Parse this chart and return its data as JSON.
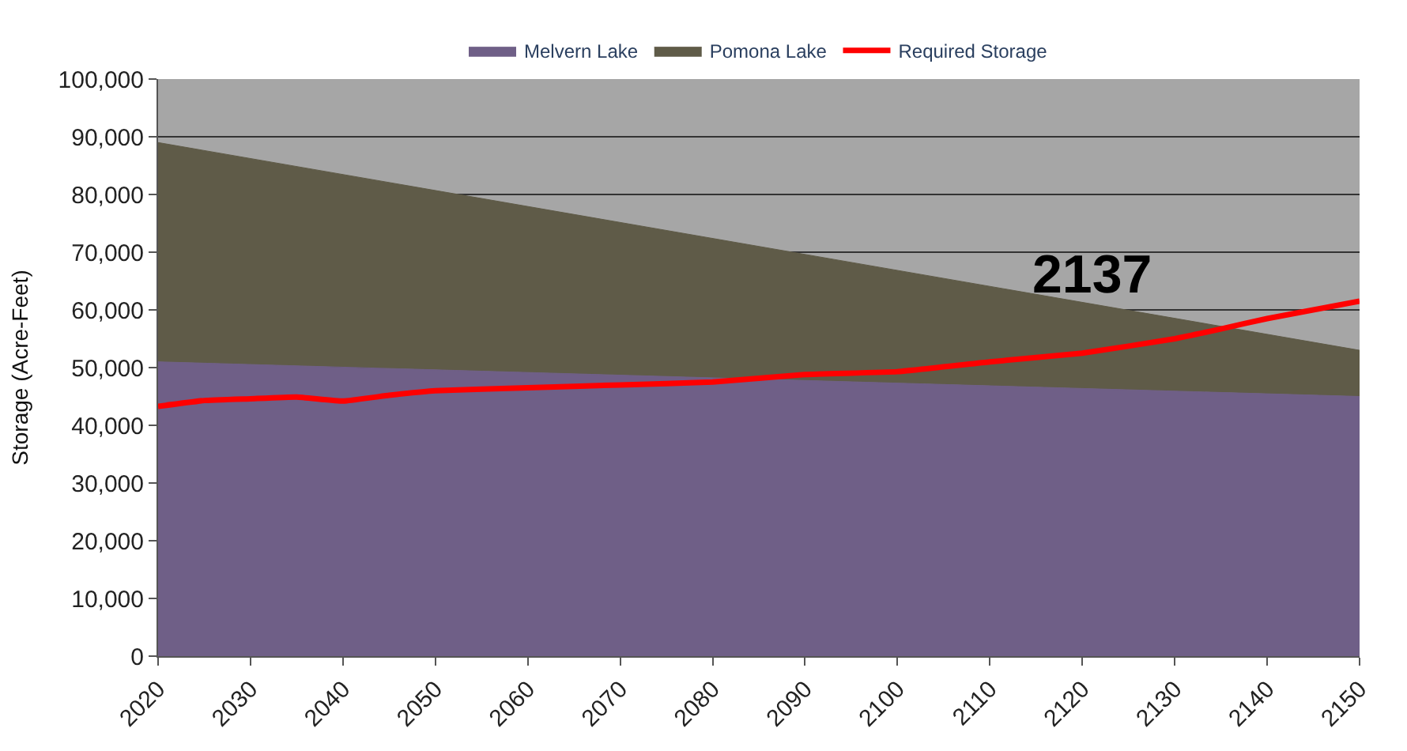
{
  "chart_data": {
    "type": "area",
    "stacked": true,
    "ylabel": "Storage (Acre-Feet)",
    "x": [
      2020,
      2150
    ],
    "series": [
      {
        "name": "Melvern Lake",
        "color": "#6f5f87",
        "values": [
          51000,
          45000
        ]
      },
      {
        "name": "Pomona Lake",
        "color": "#5f5b48",
        "values": [
          38000,
          8000
        ]
      },
      {
        "name": "Required Storage",
        "color": "#ff0000",
        "type": "line",
        "x": [
          2020,
          2025,
          2030,
          2035,
          2040,
          2045,
          2050,
          2060,
          2070,
          2080,
          2090,
          2100,
          2110,
          2120,
          2130,
          2135,
          2140,
          2150
        ],
        "values": [
          43300,
          44300,
          44600,
          44900,
          44200,
          45200,
          46000,
          46500,
          47000,
          47500,
          48800,
          49300,
          51000,
          52500,
          55000,
          56700,
          58500,
          61500
        ]
      }
    ],
    "xlim": [
      2020,
      2150
    ],
    "xticks": [
      2020,
      2030,
      2040,
      2050,
      2060,
      2070,
      2080,
      2090,
      2100,
      2110,
      2120,
      2130,
      2140,
      2150
    ],
    "ylim": [
      0,
      100000
    ],
    "yticks": [
      {
        "value": 0,
        "label": "0"
      },
      {
        "value": 10000,
        "label": "10,000"
      },
      {
        "value": 20000,
        "label": "20,000"
      },
      {
        "value": 30000,
        "label": "30,000"
      },
      {
        "value": 40000,
        "label": "40,000"
      },
      {
        "value": 50000,
        "label": "50,000"
      },
      {
        "value": 60000,
        "label": "60,000"
      },
      {
        "value": 70000,
        "label": "70,000"
      },
      {
        "value": 80000,
        "label": "80,000"
      },
      {
        "value": 90000,
        "label": "90,000"
      },
      {
        "value": 100000,
        "label": "100,000"
      }
    ],
    "annotations": [
      "2137"
    ],
    "grid": "y",
    "legend": "top",
    "marker": "none"
  }
}
